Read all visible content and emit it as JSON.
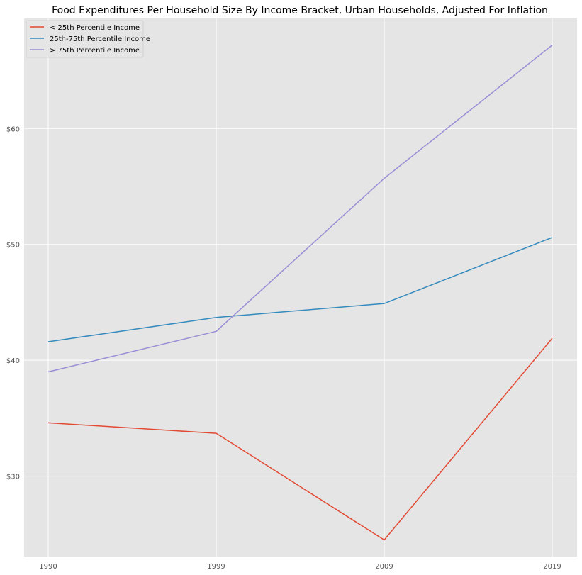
{
  "chart_data": {
    "type": "line",
    "title": "Food Expenditures Per Household Size By Income Bracket, Urban Households, Adjusted For Inflation",
    "xlabel": "",
    "ylabel": "",
    "x": [
      "1990",
      "1999",
      "2009",
      "2019"
    ],
    "ytick_labels": [
      "$30",
      "$40",
      "$50",
      "$60"
    ],
    "ytick_values": [
      30,
      40,
      50,
      60
    ],
    "ylim": [
      23.0,
      69.5
    ],
    "grid": true,
    "legend_position": "top-left",
    "series": [
      {
        "name": "< 25th Percentile Income",
        "color": "#E24A33",
        "values": [
          34.6,
          33.7,
          24.5,
          41.9
        ]
      },
      {
        "name": "25th-75th Percentile Income",
        "color": "#348ABD",
        "values": [
          41.6,
          43.7,
          44.9,
          50.6
        ]
      },
      {
        "name": "> 75th Percentile Income",
        "color": "#988ED5",
        "values": [
          39.0,
          42.5,
          55.7,
          67.2
        ]
      }
    ]
  }
}
